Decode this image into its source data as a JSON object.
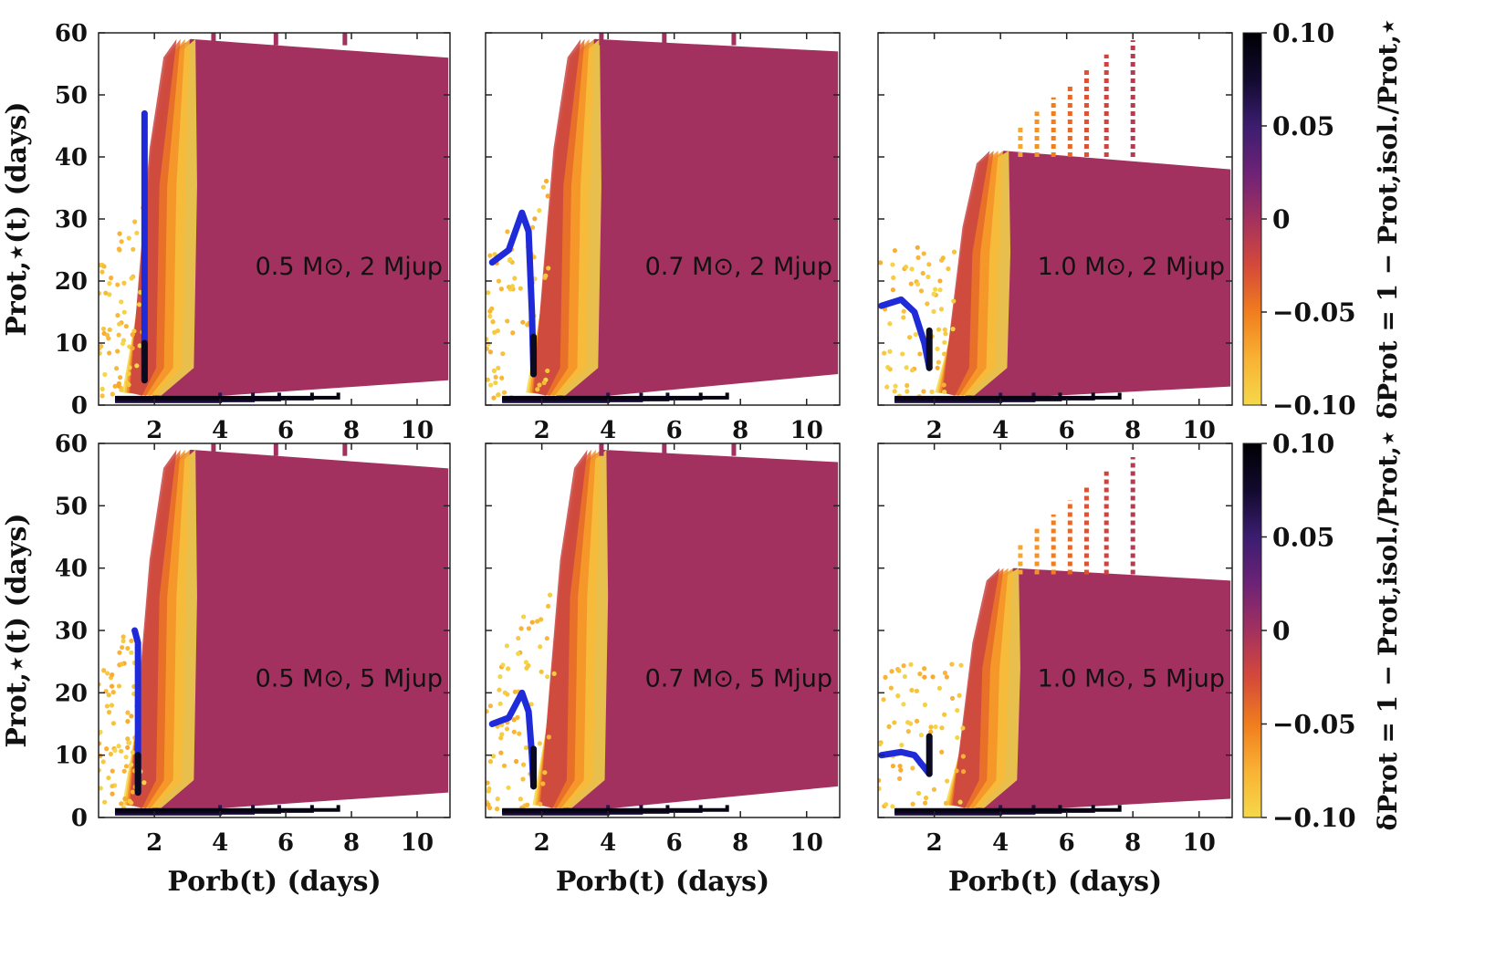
{
  "colors": {
    "colormap": [
      "#f5d84a",
      "#f9b234",
      "#f07d1e",
      "#d4493a",
      "#a3315f",
      "#6d2277",
      "#3b1d70",
      "#120a2e",
      "#000004"
    ],
    "dominant_region": "#a72f5e",
    "track": "#1f2bd8"
  },
  "chart_data": [
    {
      "type": "scatter",
      "annotation": "0.5 M⊙, 2 Mjup",
      "xlabel": "",
      "ylabel": "Prot,⋆(t) (days)",
      "xlim": [
        0.3,
        11
      ],
      "ylim": [
        0,
        60
      ],
      "xticks": [
        2,
        4,
        6,
        8,
        10
      ],
      "yticks": [
        0,
        10,
        20,
        30,
        40,
        50,
        60
      ],
      "legend": "none",
      "regions": {
        "main_color": 0.0,
        "plateau_top": 59,
        "right_top": 56,
        "left_edge": 2.5,
        "bottom_min": 4
      },
      "track": {
        "x": [
          1.7,
          1.7,
          1.7,
          1.7,
          1.7
        ],
        "y": [
          47,
          35,
          20,
          10,
          4
        ]
      }
    },
    {
      "type": "scatter",
      "annotation": "0.7 M⊙, 2 Mjup",
      "xlabel": "",
      "ylabel": "",
      "xlim": [
        0.3,
        11
      ],
      "ylim": [
        0,
        60
      ],
      "xticks": [
        2,
        4,
        6,
        8,
        10
      ],
      "yticks": [
        0,
        10,
        20,
        30,
        40,
        50,
        60
      ],
      "legend": "none",
      "regions": {
        "main_color": 0.0,
        "plateau_top": 59,
        "right_top": 57,
        "left_edge": 3.0,
        "bottom_min": 5
      },
      "track": {
        "x": [
          0.5,
          1.0,
          1.4,
          1.6,
          1.7,
          1.75
        ],
        "y": [
          23,
          25,
          31,
          28,
          15,
          5
        ]
      }
    },
    {
      "type": "scatter",
      "annotation": "1.0 M⊙, 2 Mjup",
      "xlabel": "",
      "ylabel": "",
      "xlim": [
        0.3,
        11
      ],
      "ylim": [
        0,
        60
      ],
      "xticks": [
        2,
        4,
        6,
        8,
        10
      ],
      "yticks": [
        0,
        10,
        20,
        30,
        40,
        50,
        60
      ],
      "legend": "none",
      "regions": {
        "main_color": 0.0,
        "plateau_top": 41,
        "right_top": 38,
        "left_edge": 3.5,
        "bottom_min": 3
      },
      "track": {
        "x": [
          0.4,
          1.0,
          1.4,
          1.7,
          1.85
        ],
        "y": [
          16,
          17,
          15,
          10,
          6
        ]
      }
    },
    {
      "type": "scatter",
      "annotation": "0.5 M⊙, 5 Mjup",
      "xlabel": "Porb(t) (days)",
      "ylabel": "Prot,⋆(t) (days)",
      "xlim": [
        0.3,
        11
      ],
      "ylim": [
        0,
        60
      ],
      "xticks": [
        2,
        4,
        6,
        8,
        10
      ],
      "yticks": [
        0,
        10,
        20,
        30,
        40,
        50,
        60
      ],
      "legend": "none",
      "regions": {
        "main_color": 0.0,
        "plateau_top": 59,
        "right_top": 56,
        "left_edge": 2.5,
        "bottom_min": 4
      },
      "track": {
        "x": [
          1.4,
          1.5,
          1.5,
          1.5,
          1.5
        ],
        "y": [
          30,
          28,
          20,
          10,
          4
        ]
      }
    },
    {
      "type": "scatter",
      "annotation": "0.7 M⊙, 5 Mjup",
      "xlabel": "Porb(t) (days)",
      "ylabel": "",
      "xlim": [
        0.3,
        11
      ],
      "ylim": [
        0,
        60
      ],
      "xticks": [
        2,
        4,
        6,
        8,
        10
      ],
      "yticks": [
        0,
        10,
        20,
        30,
        40,
        50,
        60
      ],
      "legend": "none",
      "regions": {
        "main_color": 0.0,
        "plateau_top": 59,
        "right_top": 57,
        "left_edge": 3.2,
        "bottom_min": 5
      },
      "track": {
        "x": [
          0.5,
          1.0,
          1.4,
          1.6,
          1.7,
          1.75
        ],
        "y": [
          15,
          16,
          20,
          17,
          10,
          5
        ]
      }
    },
    {
      "type": "scatter",
      "annotation": "1.0 M⊙, 5 Mjup",
      "xlabel": "Porb(t) (days)",
      "ylabel": "",
      "xlim": [
        0.3,
        11
      ],
      "ylim": [
        0,
        60
      ],
      "xticks": [
        2,
        4,
        6,
        8,
        10
      ],
      "yticks": [
        0,
        10,
        20,
        30,
        40,
        50,
        60
      ],
      "legend": "none",
      "regions": {
        "main_color": 0.0,
        "plateau_top": 40,
        "right_top": 38,
        "left_edge": 3.8,
        "bottom_min": 3
      },
      "track": {
        "x": [
          0.4,
          1.0,
          1.4,
          1.7,
          1.85
        ],
        "y": [
          10,
          10.5,
          10,
          8,
          7
        ]
      }
    }
  ],
  "colorbars": [
    {
      "label": "δProt = 1 − Prot,isol./Prot,⋆",
      "ticks": [
        0.1,
        0.05,
        0,
        -0.05,
        -0.1
      ],
      "tick_labels": [
        "0.10",
        "0.05",
        "0",
        "−0.05",
        "−0.10"
      ],
      "range": [
        -0.1,
        0.1
      ]
    },
    {
      "label": "δProt = 1 − Prot,isol./Prot,⋆",
      "ticks": [
        0.1,
        0.05,
        0,
        -0.05,
        -0.1
      ],
      "tick_labels": [
        "0.10",
        "0.05",
        "0",
        "−0.05",
        "−0.10"
      ],
      "range": [
        -0.1,
        0.1
      ]
    }
  ]
}
